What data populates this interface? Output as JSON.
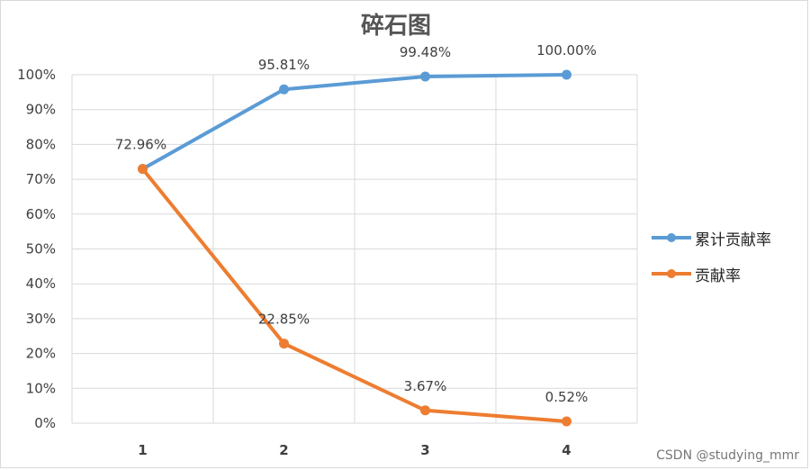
{
  "chart_data": {
    "type": "line",
    "title": "碎石图",
    "categories": [
      "1",
      "2",
      "3",
      "4"
    ],
    "y_ticks": [
      "0%",
      "10%",
      "20%",
      "30%",
      "40%",
      "50%",
      "60%",
      "70%",
      "80%",
      "90%",
      "100%"
    ],
    "ylim": [
      0,
      100
    ],
    "grid": true,
    "legend_position": "right",
    "series": [
      {
        "name": "累计贡献率",
        "color": "#5b9bd5",
        "values": [
          72.96,
          95.81,
          99.48,
          100.0
        ],
        "labels": [
          "72.96%",
          "95.81%",
          "99.48%",
          "100.00%"
        ]
      },
      {
        "name": "贡献率",
        "color": "#ed7d31",
        "values": [
          72.96,
          22.85,
          3.67,
          0.52
        ],
        "labels": [
          "",
          "22.85%",
          "3.67%",
          "0.52%"
        ]
      }
    ]
  },
  "watermark": "CSDN @studying_mmr"
}
